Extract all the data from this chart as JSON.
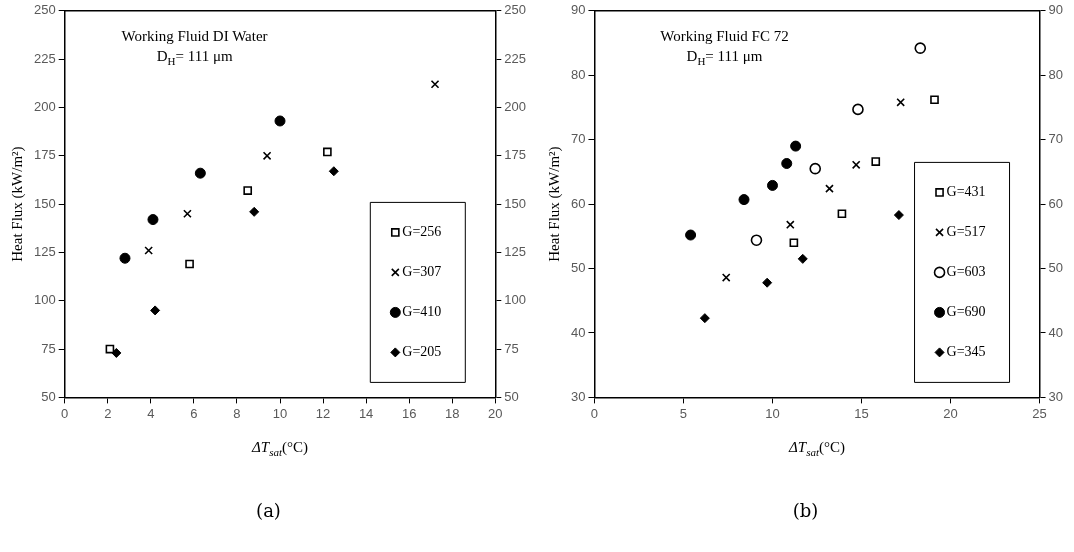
{
  "chart_data": [
    {
      "type": "scatter",
      "xlabel": "ΔT$_{sat}$(°C)",
      "ylabel": "Heat Flux (kW/m²)",
      "xlim": [
        0,
        20
      ],
      "xticks": [
        0,
        2,
        4,
        6,
        8,
        10,
        12,
        14,
        16,
        18,
        20
      ],
      "ylim": [
        50,
        250
      ],
      "yticks": [
        50,
        75,
        100,
        125,
        150,
        175,
        200,
        225,
        250
      ],
      "y2lim": [
        50,
        250
      ],
      "y2ticks": [
        50,
        75,
        100,
        125,
        150,
        175,
        200,
        225,
        250
      ],
      "grid": false,
      "legend": "bottom right",
      "annotations": [
        "Working Fluid DI Water",
        "D$_{H}$= 111 μm",
        "(a)"
      ],
      "series": [
        {
          "name": "G=256",
          "color": "#ffffff",
          "marker": "square",
          "x": [
            2.1,
            5.8,
            8.5,
            12.2
          ],
          "values": [
            75,
            119,
            157,
            177
          ]
        },
        {
          "name": "G=307",
          "color": "#000000",
          "marker": "cross",
          "x": [
            3.9,
            5.7,
            9.4,
            17.2
          ],
          "values": [
            126,
            145,
            175,
            212
          ]
        },
        {
          "name": "G=410",
          "color": "#000000",
          "marker": "circle",
          "x": [
            2.8,
            4.1,
            6.3,
            10.0
          ],
          "values": [
            122,
            142,
            166,
            193
          ]
        },
        {
          "name": "G=205",
          "color": "#000000",
          "marker": "diamond",
          "x": [
            2.4,
            4.2,
            8.8,
            12.5
          ],
          "values": [
            73,
            95,
            146,
            167
          ]
        }
      ]
    },
    {
      "type": "scatter",
      "xlabel": "ΔT$_{sat}$(°C)",
      "ylabel": "Heat Flux (kW/m²)",
      "xlim": [
        0,
        25
      ],
      "xticks": [
        0,
        5,
        10,
        15,
        20,
        25
      ],
      "ylim": [
        30,
        90
      ],
      "yticks": [
        30,
        40,
        50,
        60,
        70,
        80,
        90
      ],
      "y2lim": [
        30,
        90
      ],
      "y2ticks": [
        30,
        40,
        50,
        60,
        70,
        80,
        90
      ],
      "grid": false,
      "legend": "bottom right",
      "annotations": [
        "Working Fluid FC 72",
        "D$_{H}$= 111 μm",
        "(b)"
      ],
      "series": [
        {
          "name": "G=431",
          "color": "#ffffff",
          "marker": "square",
          "x": [
            11.2,
            13.9,
            15.8,
            19.1
          ],
          "values": [
            54.0,
            58.5,
            66.6,
            76.2
          ]
        },
        {
          "name": "G=517",
          "color": "#000000",
          "marker": "cross",
          "x": [
            7.4,
            11.0,
            13.2,
            14.7,
            17.2
          ],
          "values": [
            48.6,
            56.8,
            62.4,
            66.1,
            75.8
          ]
        },
        {
          "name": "G=603",
          "color": "#ffffff",
          "marker": "circle",
          "x": [
            9.1,
            12.4,
            14.8,
            18.3
          ],
          "values": [
            54.4,
            65.5,
            74.7,
            84.2
          ]
        },
        {
          "name": "G=690",
          "color": "#000000",
          "marker": "circle",
          "x": [
            5.4,
            8.4,
            10.0,
            10.8,
            11.3
          ],
          "values": [
            55.2,
            60.7,
            62.9,
            66.3,
            69.0
          ]
        },
        {
          "name": "G=345",
          "color": "#000000",
          "marker": "diamond",
          "x": [
            6.2,
            9.7,
            11.7,
            17.1
          ],
          "values": [
            42.3,
            47.8,
            51.5,
            58.3
          ]
        }
      ]
    }
  ]
}
